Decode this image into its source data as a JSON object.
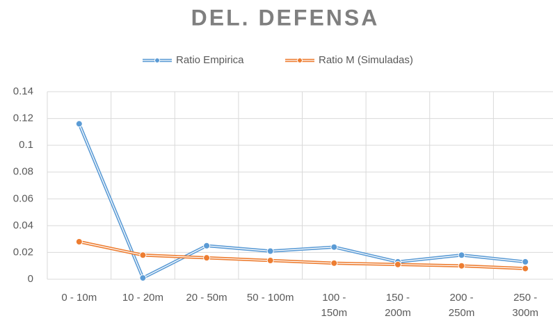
{
  "chart_data": {
    "type": "line",
    "title": "DEL. DEFENSA",
    "categories": [
      "0 - 10m",
      "10 - 20m",
      "20 - 50m",
      "50 - 100m",
      "100 -\n150m",
      "150 -\n200m",
      "200 -\n250m",
      "250 -\n300m"
    ],
    "series": [
      {
        "name": "Ratio Empirica",
        "color": "#5b9bd5",
        "values": [
          0.116,
          0.001,
          0.025,
          0.021,
          0.024,
          0.013,
          0.018,
          0.013
        ]
      },
      {
        "name": "Ratio M (Simuladas)",
        "color": "#ed7d31",
        "values": [
          0.028,
          0.018,
          0.016,
          0.014,
          0.012,
          0.011,
          0.01,
          0.008
        ]
      }
    ],
    "ylim": [
      0,
      0.14
    ],
    "yticks": [
      0,
      0.02,
      0.04,
      0.06,
      0.08,
      0.1,
      0.12,
      0.14
    ],
    "grid": true,
    "legend": "top"
  }
}
